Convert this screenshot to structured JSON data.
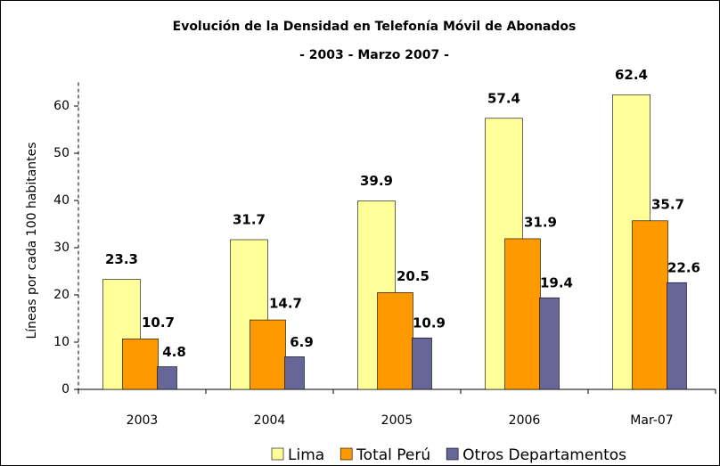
{
  "chart_data": {
    "type": "bar",
    "title": "Evolución de la Densidad en Telefonía Móvil de Abonados",
    "subtitle": "- 2003 - Marzo 2007 -",
    "y_label": "Líneas por cada 100 habitantes",
    "categories": [
      "2003",
      "2004",
      "2005",
      "2006",
      "Mar-07"
    ],
    "series": [
      {
        "name": "Lima",
        "color": "#ffff99",
        "values": [
          23.3,
          31.7,
          39.9,
          57.4,
          62.4
        ]
      },
      {
        "name": "Total Perú",
        "color": "#ff9900",
        "values": [
          10.7,
          14.7,
          20.5,
          31.9,
          35.7
        ]
      },
      {
        "name": "Otros Departamentos",
        "color": "#666699",
        "values": [
          4.8,
          6.9,
          10.9,
          19.4,
          22.6
        ]
      }
    ],
    "ylim": [
      0,
      65
    ],
    "yticks": [
      0,
      10,
      20,
      30,
      40,
      50,
      60
    ],
    "grid": false,
    "legend": "bottom"
  }
}
